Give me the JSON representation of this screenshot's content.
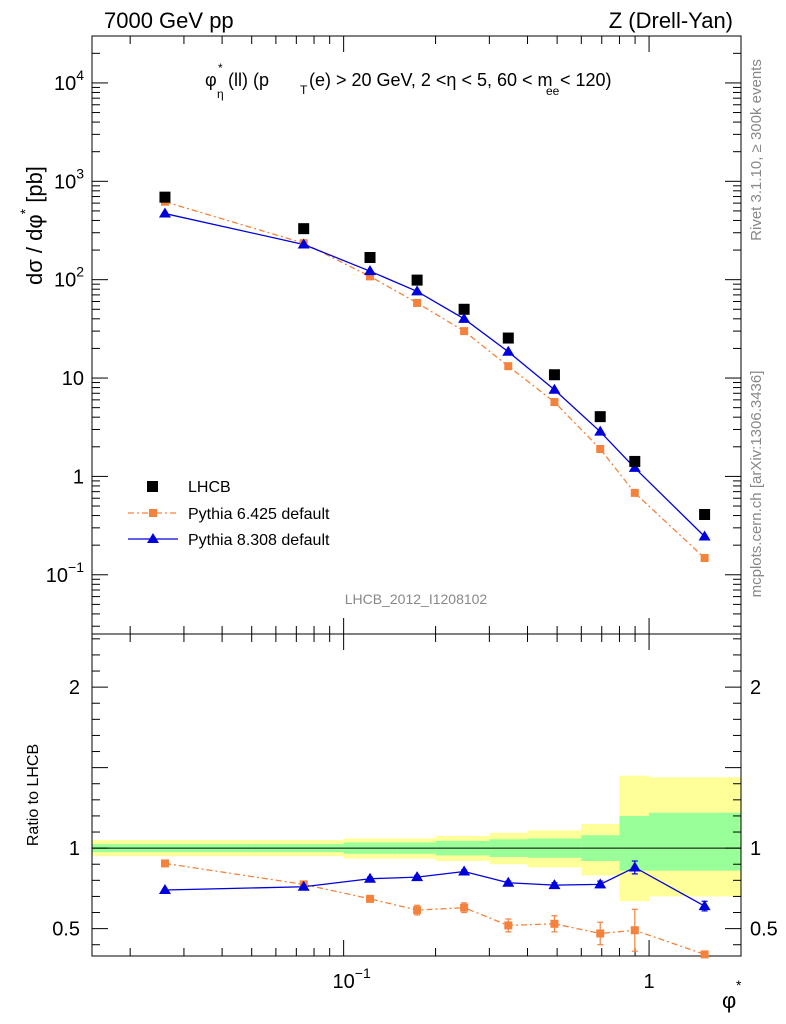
{
  "header": {
    "left": "7000 GeV pp",
    "right": "Z (Drell-Yan)"
  },
  "side_texts": {
    "rivet": "Rivet 3.1.10, ≥ 300k events",
    "mcplots": "mcplots.cern.ch [arXiv:1306.3436]"
  },
  "plot_title": {
    "phi": "φ",
    "phi_sup": "*",
    "phi_sub": "η",
    "ll": "(ll) (p",
    "pt_sub": "T",
    "mid": "(e) > 20 GeV, 2 <η < 5, 60 < m",
    "m_sub": "ee",
    "end": " < 120)"
  },
  "analysis_id": "LHCB_2012_I1208102",
  "colors": {
    "data": "#000000",
    "pythia6": "#f5823c",
    "pythia8": "#0000dd",
    "band_inner": "#99ff99",
    "band_outer": "#ffff99"
  },
  "chart_data": [
    {
      "type": "scatter",
      "name": "main",
      "x_scale": "log",
      "y_scale": "log",
      "xlim": [
        0.015,
        2.0
      ],
      "ylim": [
        0.025,
        30000
      ],
      "ylabel": "dσ / dφ* [pb]",
      "ylabel_parts": {
        "main": "dσ / dφ",
        "sup": "*",
        "unit": " [pb]"
      },
      "y_ticks": [
        {
          "v": 0.1,
          "base": "10",
          "exp": "−1"
        },
        {
          "v": 1,
          "text": "1"
        },
        {
          "v": 10,
          "text": "10"
        },
        {
          "v": 100,
          "base": "10",
          "exp": "2"
        },
        {
          "v": 1000,
          "base": "10",
          "exp": "3"
        },
        {
          "v": 10000,
          "base": "10",
          "exp": "4"
        }
      ],
      "x": [
        0.026,
        0.074,
        0.122,
        0.174,
        0.248,
        0.346,
        0.49,
        0.692,
        0.898,
        1.52
      ],
      "series": [
        {
          "name": "LHCB",
          "values": [
            690,
            330,
            168,
            99,
            50,
            25.5,
            10.8,
            4.05,
            1.42,
            0.41
          ]
        },
        {
          "name": "Pythia 6.425 default",
          "values": [
            620,
            235,
            108,
            58,
            30,
            13.2,
            5.7,
            1.9,
            0.68,
            0.148
          ]
        },
        {
          "name": "Pythia 8.308 default",
          "values": [
            470,
            228,
            122,
            76,
            40,
            18.5,
            7.6,
            2.85,
            1.22,
            0.245
          ]
        }
      ],
      "legend": [
        "LHCB",
        "Pythia 6.425 default",
        "Pythia 8.308 default"
      ]
    },
    {
      "type": "line",
      "name": "ratio",
      "x_scale": "log",
      "y_scale": "linear",
      "xlim": [
        0.015,
        2.0
      ],
      "ylim": [
        0.33,
        2.33
      ],
      "ylabel": "Ratio to LHCB",
      "xlabel": "φ*",
      "xlabel_parts": {
        "main": "φ",
        "sup": "*"
      },
      "x_ticks": [
        {
          "v": 0.1,
          "base": "10",
          "exp": "−1"
        },
        {
          "v": 1,
          "text": "1"
        }
      ],
      "y_ticks": [
        {
          "v": 0.5,
          "text": "0.5"
        },
        {
          "v": 1,
          "text": "1"
        },
        {
          "v": 2,
          "text": "2"
        }
      ],
      "x": [
        0.026,
        0.074,
        0.122,
        0.174,
        0.248,
        0.346,
        0.49,
        0.692,
        0.898,
        1.52
      ],
      "series": [
        {
          "name": "Pythia 6.425 default",
          "values": [
            0.905,
            0.775,
            0.685,
            0.615,
            0.63,
            0.52,
            0.53,
            0.47,
            0.49,
            0.34
          ],
          "errors": [
            0.0,
            0.01,
            0.02,
            0.03,
            0.03,
            0.04,
            0.05,
            0.07,
            0.13,
            0.0
          ]
        },
        {
          "name": "Pythia 8.308 default",
          "values": [
            0.74,
            0.76,
            0.81,
            0.82,
            0.855,
            0.785,
            0.77,
            0.775,
            0.88,
            0.64
          ],
          "errors": [
            0.0,
            0.005,
            0.01,
            0.01,
            0.01,
            0.01,
            0.015,
            0.02,
            0.04,
            0.03
          ]
        }
      ],
      "bands": {
        "edges": [
          0.015,
          0.05,
          0.1,
          0.15,
          0.2,
          0.3,
          0.4,
          0.6,
          0.8,
          1.0,
          2.0
        ],
        "inner": [
          [
            0.975,
            1.025
          ],
          [
            0.975,
            1.025
          ],
          [
            0.965,
            1.035
          ],
          [
            0.965,
            1.035
          ],
          [
            0.955,
            1.045
          ],
          [
            0.945,
            1.055
          ],
          [
            0.94,
            1.06
          ],
          [
            0.92,
            1.08
          ],
          [
            0.86,
            1.2
          ],
          [
            0.86,
            1.22
          ]
        ],
        "outer": [
          [
            0.95,
            1.05
          ],
          [
            0.95,
            1.05
          ],
          [
            0.935,
            1.06
          ],
          [
            0.935,
            1.06
          ],
          [
            0.92,
            1.075
          ],
          [
            0.9,
            1.095
          ],
          [
            0.88,
            1.11
          ],
          [
            0.83,
            1.15
          ],
          [
            0.67,
            1.45
          ],
          [
            0.7,
            1.44
          ]
        ]
      }
    }
  ]
}
